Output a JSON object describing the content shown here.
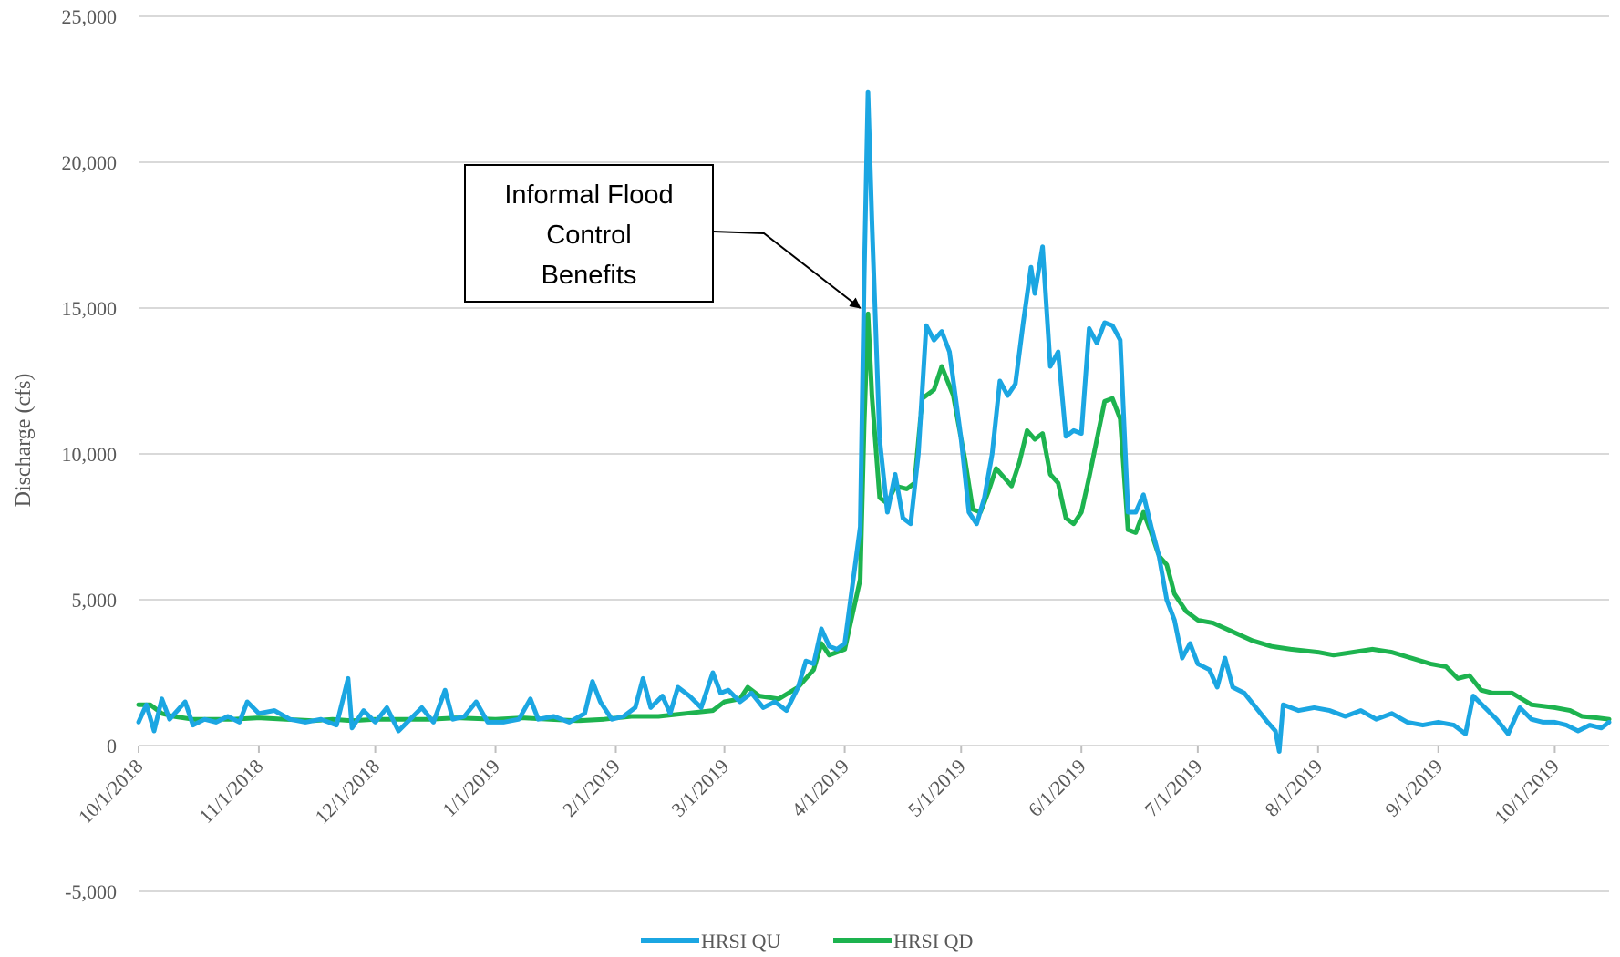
{
  "chart_data": {
    "type": "line",
    "title": "",
    "xlabel": "",
    "ylabel": "Discharge (cfs)",
    "ylim": [
      -5000,
      25000
    ],
    "yticks": [
      -5000,
      0,
      5000,
      10000,
      15000,
      20000,
      25000
    ],
    "ytick_labels": [
      "-5,000",
      "0",
      "5,000",
      "10,000",
      "15,000",
      "20,000",
      "25,000"
    ],
    "xlim": [
      "2018-10-01",
      "2019-10-15"
    ],
    "xticks": [
      "2018-10-01",
      "2018-11-01",
      "2018-12-01",
      "2019-01-01",
      "2019-02-01",
      "2019-03-01",
      "2019-04-01",
      "2019-05-01",
      "2019-06-01",
      "2019-07-01",
      "2019-08-01",
      "2019-09-01",
      "2019-10-01"
    ],
    "xtick_labels": [
      "10/1/2018",
      "11/1/2018",
      "12/1/2018",
      "1/1/2019",
      "2/1/2019",
      "3/1/2019",
      "4/1/2019",
      "5/1/2019",
      "6/1/2019",
      "7/1/2019",
      "8/1/2019",
      "9/1/2019",
      "10/1/2019"
    ],
    "grid": true,
    "legend_position": "bottom-center",
    "annotation": {
      "lines": [
        "Informal Flood",
        "Control",
        "Benefits"
      ],
      "points_to": {
        "date": "2019-04-05",
        "value": 15000
      }
    },
    "series": [
      {
        "name": "HRSI QU",
        "color": "#1ba6e2",
        "points": [
          [
            "2018-10-01",
            800
          ],
          [
            "2018-10-03",
            1400
          ],
          [
            "2018-10-05",
            500
          ],
          [
            "2018-10-07",
            1600
          ],
          [
            "2018-10-09",
            900
          ],
          [
            "2018-10-11",
            1200
          ],
          [
            "2018-10-13",
            1500
          ],
          [
            "2018-10-15",
            700
          ],
          [
            "2018-10-18",
            900
          ],
          [
            "2018-10-21",
            800
          ],
          [
            "2018-10-24",
            1000
          ],
          [
            "2018-10-27",
            800
          ],
          [
            "2018-10-29",
            1500
          ],
          [
            "2018-11-01",
            1100
          ],
          [
            "2018-11-05",
            1200
          ],
          [
            "2018-11-09",
            900
          ],
          [
            "2018-11-13",
            800
          ],
          [
            "2018-11-17",
            900
          ],
          [
            "2018-11-21",
            700
          ],
          [
            "2018-11-24",
            2300
          ],
          [
            "2018-11-25",
            600
          ],
          [
            "2018-11-28",
            1200
          ],
          [
            "2018-12-01",
            800
          ],
          [
            "2018-12-04",
            1300
          ],
          [
            "2018-12-07",
            500
          ],
          [
            "2018-12-10",
            900
          ],
          [
            "2018-12-13",
            1300
          ],
          [
            "2018-12-16",
            800
          ],
          [
            "2018-12-19",
            1900
          ],
          [
            "2018-12-21",
            900
          ],
          [
            "2018-12-24",
            1000
          ],
          [
            "2018-12-27",
            1500
          ],
          [
            "2018-12-30",
            800
          ],
          [
            "2019-01-03",
            800
          ],
          [
            "2019-01-07",
            900
          ],
          [
            "2019-01-10",
            1600
          ],
          [
            "2019-01-12",
            900
          ],
          [
            "2019-01-16",
            1000
          ],
          [
            "2019-01-20",
            800
          ],
          [
            "2019-01-24",
            1100
          ],
          [
            "2019-01-26",
            2200
          ],
          [
            "2019-01-28",
            1500
          ],
          [
            "2019-01-31",
            900
          ],
          [
            "2019-02-03",
            1000
          ],
          [
            "2019-02-06",
            1300
          ],
          [
            "2019-02-08",
            2300
          ],
          [
            "2019-02-10",
            1300
          ],
          [
            "2019-02-13",
            1700
          ],
          [
            "2019-02-15",
            1100
          ],
          [
            "2019-02-17",
            2000
          ],
          [
            "2019-02-20",
            1700
          ],
          [
            "2019-02-23",
            1300
          ],
          [
            "2019-02-26",
            2500
          ],
          [
            "2019-02-28",
            1800
          ],
          [
            "2019-03-02",
            1900
          ],
          [
            "2019-03-05",
            1500
          ],
          [
            "2019-03-08",
            1800
          ],
          [
            "2019-03-11",
            1300
          ],
          [
            "2019-03-14",
            1500
          ],
          [
            "2019-03-17",
            1200
          ],
          [
            "2019-03-20",
            2000
          ],
          [
            "2019-03-22",
            2900
          ],
          [
            "2019-03-24",
            2800
          ],
          [
            "2019-03-26",
            4000
          ],
          [
            "2019-03-28",
            3400
          ],
          [
            "2019-03-30",
            3300
          ],
          [
            "2019-04-01",
            3500
          ],
          [
            "2019-04-03",
            5500
          ],
          [
            "2019-04-05",
            7500
          ],
          [
            "2019-04-06",
            16000
          ],
          [
            "2019-04-07",
            22400
          ],
          [
            "2019-04-08",
            18000
          ],
          [
            "2019-04-10",
            10500
          ],
          [
            "2019-04-12",
            8000
          ],
          [
            "2019-04-14",
            9300
          ],
          [
            "2019-04-16",
            7800
          ],
          [
            "2019-04-18",
            7600
          ],
          [
            "2019-04-20",
            10000
          ],
          [
            "2019-04-22",
            14400
          ],
          [
            "2019-04-24",
            13900
          ],
          [
            "2019-04-26",
            14200
          ],
          [
            "2019-04-28",
            13500
          ],
          [
            "2019-05-01",
            10500
          ],
          [
            "2019-05-03",
            8000
          ],
          [
            "2019-05-05",
            7600
          ],
          [
            "2019-05-07",
            8500
          ],
          [
            "2019-05-09",
            10000
          ],
          [
            "2019-05-11",
            12500
          ],
          [
            "2019-05-13",
            12000
          ],
          [
            "2019-05-15",
            12400
          ],
          [
            "2019-05-17",
            14500
          ],
          [
            "2019-05-19",
            16400
          ],
          [
            "2019-05-20",
            15500
          ],
          [
            "2019-05-22",
            17100
          ],
          [
            "2019-05-24",
            13000
          ],
          [
            "2019-05-26",
            13500
          ],
          [
            "2019-05-28",
            10600
          ],
          [
            "2019-05-30",
            10800
          ],
          [
            "2019-06-01",
            10700
          ],
          [
            "2019-06-03",
            14300
          ],
          [
            "2019-06-05",
            13800
          ],
          [
            "2019-06-07",
            14500
          ],
          [
            "2019-06-09",
            14400
          ],
          [
            "2019-06-11",
            13900
          ],
          [
            "2019-06-13",
            8000
          ],
          [
            "2019-06-15",
            8000
          ],
          [
            "2019-06-17",
            8600
          ],
          [
            "2019-06-19",
            7500
          ],
          [
            "2019-06-21",
            6500
          ],
          [
            "2019-06-23",
            5000
          ],
          [
            "2019-06-25",
            4300
          ],
          [
            "2019-06-27",
            3000
          ],
          [
            "2019-06-29",
            3500
          ],
          [
            "2019-07-01",
            2800
          ],
          [
            "2019-07-04",
            2600
          ],
          [
            "2019-07-06",
            2000
          ],
          [
            "2019-07-08",
            3000
          ],
          [
            "2019-07-10",
            2000
          ],
          [
            "2019-07-13",
            1800
          ],
          [
            "2019-07-16",
            1300
          ],
          [
            "2019-07-19",
            800
          ],
          [
            "2019-07-21",
            500
          ],
          [
            "2019-07-22",
            -200
          ],
          [
            "2019-07-23",
            1400
          ],
          [
            "2019-07-27",
            1200
          ],
          [
            "2019-07-31",
            1300
          ],
          [
            "2019-08-04",
            1200
          ],
          [
            "2019-08-08",
            1000
          ],
          [
            "2019-08-12",
            1200
          ],
          [
            "2019-08-16",
            900
          ],
          [
            "2019-08-20",
            1100
          ],
          [
            "2019-08-24",
            800
          ],
          [
            "2019-08-28",
            700
          ],
          [
            "2019-09-01",
            800
          ],
          [
            "2019-09-05",
            700
          ],
          [
            "2019-09-08",
            400
          ],
          [
            "2019-09-10",
            1700
          ],
          [
            "2019-09-13",
            1300
          ],
          [
            "2019-09-16",
            900
          ],
          [
            "2019-09-19",
            400
          ],
          [
            "2019-09-22",
            1300
          ],
          [
            "2019-09-25",
            900
          ],
          [
            "2019-09-28",
            800
          ],
          [
            "2019-10-01",
            800
          ],
          [
            "2019-10-04",
            700
          ],
          [
            "2019-10-07",
            500
          ],
          [
            "2019-10-10",
            700
          ],
          [
            "2019-10-13",
            600
          ],
          [
            "2019-10-15",
            800
          ]
        ]
      },
      {
        "name": "HRSI QD",
        "color": "#1db34f",
        "points": [
          [
            "2018-10-01",
            1400
          ],
          [
            "2018-10-04",
            1400
          ],
          [
            "2018-10-07",
            1100
          ],
          [
            "2018-10-10",
            1000
          ],
          [
            "2018-10-15",
            900
          ],
          [
            "2018-10-20",
            900
          ],
          [
            "2018-10-25",
            900
          ],
          [
            "2018-11-01",
            950
          ],
          [
            "2018-11-08",
            900
          ],
          [
            "2018-11-15",
            850
          ],
          [
            "2018-11-20",
            900
          ],
          [
            "2018-11-25",
            850
          ],
          [
            "2018-12-01",
            900
          ],
          [
            "2018-12-08",
            900
          ],
          [
            "2018-12-15",
            900
          ],
          [
            "2018-12-22",
            950
          ],
          [
            "2019-01-01",
            900
          ],
          [
            "2019-01-08",
            950
          ],
          [
            "2019-01-15",
            900
          ],
          [
            "2019-01-22",
            850
          ],
          [
            "2019-01-29",
            900
          ],
          [
            "2019-02-05",
            1000
          ],
          [
            "2019-02-12",
            1000
          ],
          [
            "2019-02-19",
            1100
          ],
          [
            "2019-02-26",
            1200
          ],
          [
            "2019-03-01",
            1500
          ],
          [
            "2019-03-05",
            1600
          ],
          [
            "2019-03-07",
            2000
          ],
          [
            "2019-03-10",
            1700
          ],
          [
            "2019-03-15",
            1600
          ],
          [
            "2019-03-20",
            2000
          ],
          [
            "2019-03-24",
            2600
          ],
          [
            "2019-03-26",
            3500
          ],
          [
            "2019-03-28",
            3100
          ],
          [
            "2019-04-01",
            3300
          ],
          [
            "2019-04-03",
            4500
          ],
          [
            "2019-04-05",
            5700
          ],
          [
            "2019-04-06",
            11000
          ],
          [
            "2019-04-07",
            14800
          ],
          [
            "2019-04-08",
            12000
          ],
          [
            "2019-04-10",
            8500
          ],
          [
            "2019-04-12",
            8300
          ],
          [
            "2019-04-14",
            8900
          ],
          [
            "2019-04-17",
            8800
          ],
          [
            "2019-04-19",
            9000
          ],
          [
            "2019-04-21",
            11900
          ],
          [
            "2019-04-24",
            12200
          ],
          [
            "2019-04-26",
            13000
          ],
          [
            "2019-04-29",
            12000
          ],
          [
            "2019-05-02",
            9800
          ],
          [
            "2019-05-04",
            8100
          ],
          [
            "2019-05-06",
            8000
          ],
          [
            "2019-05-08",
            8700
          ],
          [
            "2019-05-10",
            9500
          ],
          [
            "2019-05-12",
            9200
          ],
          [
            "2019-05-14",
            8900
          ],
          [
            "2019-05-16",
            9700
          ],
          [
            "2019-05-18",
            10800
          ],
          [
            "2019-05-20",
            10500
          ],
          [
            "2019-05-22",
            10700
          ],
          [
            "2019-05-24",
            9300
          ],
          [
            "2019-05-26",
            9000
          ],
          [
            "2019-05-28",
            7800
          ],
          [
            "2019-05-30",
            7600
          ],
          [
            "2019-06-01",
            8000
          ],
          [
            "2019-06-03",
            9200
          ],
          [
            "2019-06-05",
            10500
          ],
          [
            "2019-06-07",
            11800
          ],
          [
            "2019-06-09",
            11900
          ],
          [
            "2019-06-11",
            11200
          ],
          [
            "2019-06-13",
            7400
          ],
          [
            "2019-06-15",
            7300
          ],
          [
            "2019-06-17",
            8000
          ],
          [
            "2019-06-19",
            7300
          ],
          [
            "2019-06-21",
            6500
          ],
          [
            "2019-06-23",
            6200
          ],
          [
            "2019-06-25",
            5200
          ],
          [
            "2019-06-28",
            4600
          ],
          [
            "2019-07-01",
            4300
          ],
          [
            "2019-07-05",
            4200
          ],
          [
            "2019-07-10",
            3900
          ],
          [
            "2019-07-15",
            3600
          ],
          [
            "2019-07-20",
            3400
          ],
          [
            "2019-07-25",
            3300
          ],
          [
            "2019-08-01",
            3200
          ],
          [
            "2019-08-05",
            3100
          ],
          [
            "2019-08-10",
            3200
          ],
          [
            "2019-08-15",
            3300
          ],
          [
            "2019-08-20",
            3200
          ],
          [
            "2019-08-25",
            3000
          ],
          [
            "2019-08-30",
            2800
          ],
          [
            "2019-09-03",
            2700
          ],
          [
            "2019-09-06",
            2300
          ],
          [
            "2019-09-09",
            2400
          ],
          [
            "2019-09-12",
            1900
          ],
          [
            "2019-09-15",
            1800
          ],
          [
            "2019-09-20",
            1800
          ],
          [
            "2019-09-25",
            1400
          ],
          [
            "2019-10-01",
            1300
          ],
          [
            "2019-10-05",
            1200
          ],
          [
            "2019-10-08",
            1000
          ],
          [
            "2019-10-12",
            950
          ],
          [
            "2019-10-15",
            900
          ]
        ]
      }
    ]
  }
}
